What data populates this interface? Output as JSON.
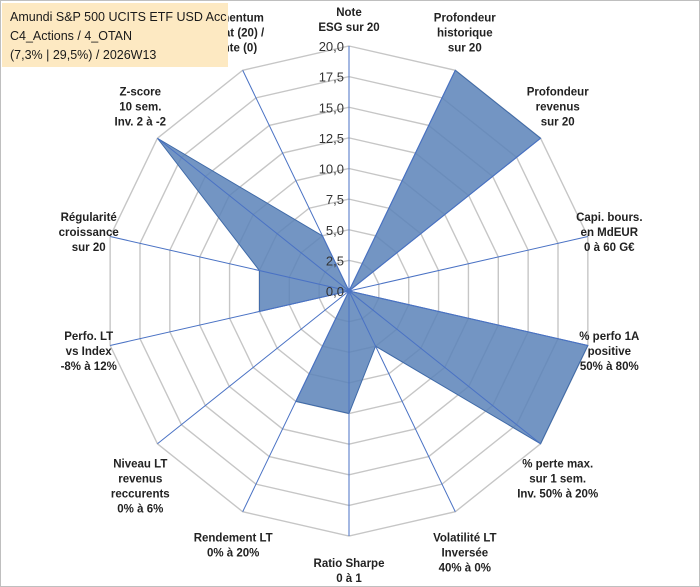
{
  "title": {
    "line1": "Amundi S&P 500 UCITS ETF USD Acc",
    "line2": "C4_Actions / 4_OTAN",
    "line3": "(7,3% | 29,5%) / 2026W13"
  },
  "chart_data": {
    "type": "radar",
    "rmin": 0,
    "rmax": 20,
    "tick_step": 2.5,
    "tick_labels": [
      "0,0",
      "2,5",
      "5,0",
      "7,5",
      "10,0",
      "12,5",
      "15,0",
      "17,5",
      "20,0"
    ],
    "axes": [
      {
        "label": [
          "Note",
          "ESG sur 20"
        ],
        "value": 0
      },
      {
        "label": [
          "Profondeur",
          "historique",
          "sur 20"
        ],
        "value": 20
      },
      {
        "label": [
          "Profondeur",
          "revenus",
          "sur 20"
        ],
        "value": 20
      },
      {
        "label": [
          "Capi. bours.",
          "en MdEUR",
          "0 à 60 G€"
        ],
        "value": 0
      },
      {
        "label": [
          "% perfo 1A",
          "positive",
          "50% à 80%"
        ],
        "value": 20
      },
      {
        "label": [
          "% perte max.",
          "sur 1 sem.",
          "Inv. 50% à 20%"
        ],
        "value": 20
      },
      {
        "label": [
          "Volatilité LT",
          "Inversée",
          "40% à 0%"
        ],
        "value": 0
      },
      {
        "label": [
          "Ratio Sharpe",
          "0 à 1"
        ],
        "value": 0
      },
      {
        "label": [
          "Rendement LT",
          "0% à 20%"
        ],
        "value": 0
      },
      {
        "label": [
          "Niveau LT",
          "revenus",
          "reccurents",
          "0% à 6%"
        ],
        "value": 0
      },
      {
        "label": [
          "Perfo. LT",
          "vs Index",
          "-8% à 12%"
        ],
        "value": 0
      },
      {
        "label": [
          "Régularité",
          "croissance",
          "sur 20"
        ],
        "value": 0
      },
      {
        "label": [
          "Z-score",
          "10 sem.",
          "Inv. 2 à -2"
        ],
        "value": 20
      },
      {
        "label": [
          "Momentum",
          "Achat (20) /",
          "Vente (0)"
        ],
        "value": 0
      }
    ],
    "series": [
      {
        "name": "Score",
        "values": [
          0,
          20,
          20,
          0,
          20,
          20,
          5,
          10,
          10,
          0,
          7.5,
          7.5,
          20,
          5
        ],
        "color": "#5b82b9",
        "fill_opacity": 0.85
      }
    ],
    "grid_color": "#c6c6c6",
    "spoke_color": "#4a72c4"
  }
}
